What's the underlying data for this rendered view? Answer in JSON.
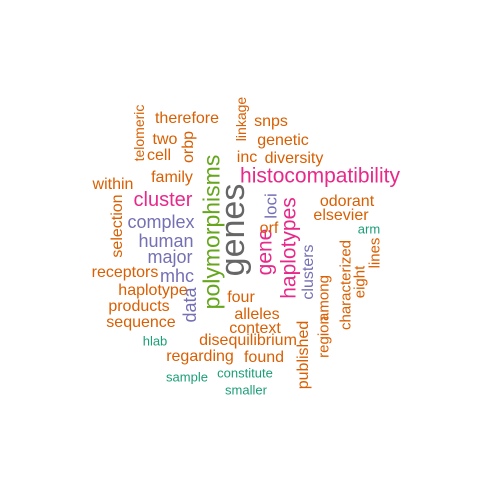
{
  "colors": {
    "orange": "#d95f02",
    "purple": "#7570b3",
    "pink": "#e7298a",
    "green": "#66a61e",
    "teal": "#1b9e77",
    "gray": "#666666"
  },
  "words": [
    {
      "text": "genes",
      "color": "gray",
      "vertical": true
    },
    {
      "text": "polymorphisms",
      "color": "green",
      "vertical": true
    },
    {
      "text": "histocompatibility",
      "color": "pink",
      "vertical": false
    },
    {
      "text": "gene",
      "color": "pink",
      "vertical": true
    },
    {
      "text": "haplotypes",
      "color": "pink",
      "vertical": true
    },
    {
      "text": "cluster",
      "color": "pink",
      "vertical": false
    },
    {
      "text": "complex",
      "color": "purple",
      "vertical": false
    },
    {
      "text": "human",
      "color": "purple",
      "vertical": false
    },
    {
      "text": "major",
      "color": "purple",
      "vertical": false
    },
    {
      "text": "mhc",
      "color": "purple",
      "vertical": false
    },
    {
      "text": "data",
      "color": "purple",
      "vertical": true
    },
    {
      "text": "loci",
      "color": "purple",
      "vertical": true
    },
    {
      "text": "clusters",
      "color": "purple",
      "vertical": true
    },
    {
      "text": "therefore",
      "color": "orange",
      "vertical": false
    },
    {
      "text": "telomeric",
      "color": "orange",
      "vertical": true
    },
    {
      "text": "two",
      "color": "orange",
      "vertical": false
    },
    {
      "text": "cell",
      "color": "orange",
      "vertical": false
    },
    {
      "text": "orbp",
      "color": "orange",
      "vertical": true
    },
    {
      "text": "family",
      "color": "orange",
      "vertical": false
    },
    {
      "text": "within",
      "color": "orange",
      "vertical": false
    },
    {
      "text": "linkage",
      "color": "orange",
      "vertical": true
    },
    {
      "text": "snps",
      "color": "orange",
      "vertical": false
    },
    {
      "text": "genetic",
      "color": "orange",
      "vertical": false
    },
    {
      "text": "inc",
      "color": "orange",
      "vertical": false
    },
    {
      "text": "diversity",
      "color": "orange",
      "vertical": false
    },
    {
      "text": "odorant",
      "color": "orange",
      "vertical": false
    },
    {
      "text": "elsevier",
      "color": "orange",
      "vertical": false
    },
    {
      "text": "orf",
      "color": "orange",
      "vertical": false
    },
    {
      "text": "selection",
      "color": "orange",
      "vertical": true
    },
    {
      "text": "receptors",
      "color": "orange",
      "vertical": false
    },
    {
      "text": "haplotype",
      "color": "orange",
      "vertical": false
    },
    {
      "text": "products",
      "color": "orange",
      "vertical": false
    },
    {
      "text": "sequence",
      "color": "orange",
      "vertical": false
    },
    {
      "text": "four",
      "color": "orange",
      "vertical": false
    },
    {
      "text": "alleles",
      "color": "orange",
      "vertical": false
    },
    {
      "text": "context",
      "color": "orange",
      "vertical": false
    },
    {
      "text": "disequilibrium",
      "color": "orange",
      "vertical": false
    },
    {
      "text": "regarding",
      "color": "orange",
      "vertical": false
    },
    {
      "text": "found",
      "color": "orange",
      "vertical": false
    },
    {
      "text": "published",
      "color": "orange",
      "vertical": true
    },
    {
      "text": "region",
      "color": "orange",
      "vertical": true
    },
    {
      "text": "among",
      "color": "orange",
      "vertical": true
    },
    {
      "text": "characterized",
      "color": "orange",
      "vertical": true
    },
    {
      "text": "eight",
      "color": "orange",
      "vertical": true
    },
    {
      "text": "lines",
      "color": "orange",
      "vertical": true
    },
    {
      "text": "arm",
      "color": "teal",
      "vertical": false
    },
    {
      "text": "hlab",
      "color": "teal",
      "vertical": false
    },
    {
      "text": "sample",
      "color": "teal",
      "vertical": false
    },
    {
      "text": "constitute",
      "color": "teal",
      "vertical": false
    },
    {
      "text": "smaller",
      "color": "teal",
      "vertical": false
    }
  ]
}
